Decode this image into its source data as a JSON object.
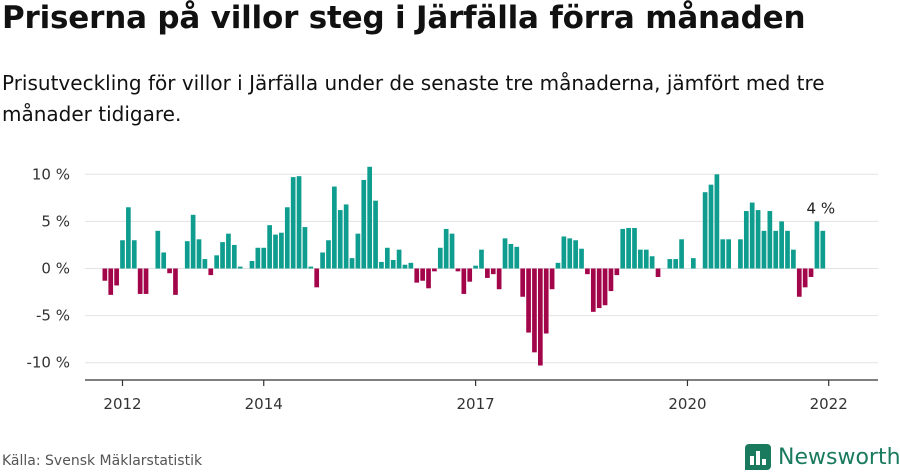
{
  "title": "Priserna på villor steg i Järfälla förra månaden",
  "subtitle": "Prisutveckling för villor i Järfälla under de senaste tre månaderna, jämfört med tre månader tidigare.",
  "source": "Källa: Svensk Mäklarstatistik",
  "brand": {
    "name": "Newsworthy",
    "icon": "newsworthy-logo-icon"
  },
  "colors": {
    "positive": "#0e9d8e",
    "negative": "#a3054a",
    "brand": "#1a7a5e"
  },
  "chart_data": {
    "type": "bar",
    "start": {
      "year": 2011,
      "month": 10
    },
    "ylim": [
      -12,
      11
    ],
    "yticks": [
      {
        "value": 10,
        "label": "10 %"
      },
      {
        "value": 5,
        "label": "5 %"
      },
      {
        "value": 0,
        "label": "0 %"
      },
      {
        "value": -5,
        "label": "-5 %"
      },
      {
        "value": -10,
        "label": "-10 %"
      }
    ],
    "xticks": [
      {
        "year": 2012,
        "label": "2012"
      },
      {
        "year": 2014,
        "label": "2014"
      },
      {
        "year": 2017,
        "label": "2017"
      },
      {
        "year": 2020,
        "label": "2020"
      },
      {
        "year": 2022,
        "label": "2022"
      }
    ],
    "values": [
      -1.3,
      -2.8,
      -1.8,
      3.0,
      6.5,
      3.0,
      -2.7,
      -2.7,
      0,
      4.0,
      1.7,
      -0.5,
      -2.8,
      0,
      2.9,
      5.7,
      3.1,
      1.0,
      -0.7,
      1.4,
      2.8,
      3.7,
      2.5,
      0.2,
      0,
      0.8,
      2.2,
      2.2,
      4.6,
      3.6,
      3.8,
      6.5,
      9.7,
      9.8,
      4.4,
      0.2,
      -2.0,
      1.7,
      3.0,
      8.7,
      6.2,
      6.8,
      1.1,
      3.7,
      9.4,
      10.8,
      7.2,
      0.7,
      2.2,
      0.9,
      2.0,
      0.4,
      0.6,
      -1.5,
      -1.3,
      -2.1,
      -0.3,
      2.2,
      4.2,
      3.7,
      -0.3,
      -2.7,
      -1.4,
      0.3,
      2.0,
      -1.0,
      -0.6,
      -2.2,
      3.2,
      2.6,
      2.3,
      -3.0,
      -6.8,
      -8.9,
      -10.3,
      -6.9,
      -2.2,
      0.6,
      3.4,
      3.2,
      3.0,
      2.1,
      -0.6,
      -4.6,
      -4.2,
      -3.9,
      -2.4,
      -0.7,
      4.2,
      4.3,
      4.3,
      2.0,
      2.0,
      1.3,
      -0.9,
      0,
      1.0,
      1.0,
      3.1,
      0,
      1.1,
      0,
      8.1,
      8.9,
      10.0,
      3.1,
      3.1,
      0,
      3.1,
      6.1,
      7.0,
      6.2,
      4.0,
      6.1,
      4.0,
      5.0,
      4.0,
      2.0,
      -3.0,
      -2.0,
      -0.9,
      5.0,
      4.0
    ],
    "last_label": "4 %"
  }
}
